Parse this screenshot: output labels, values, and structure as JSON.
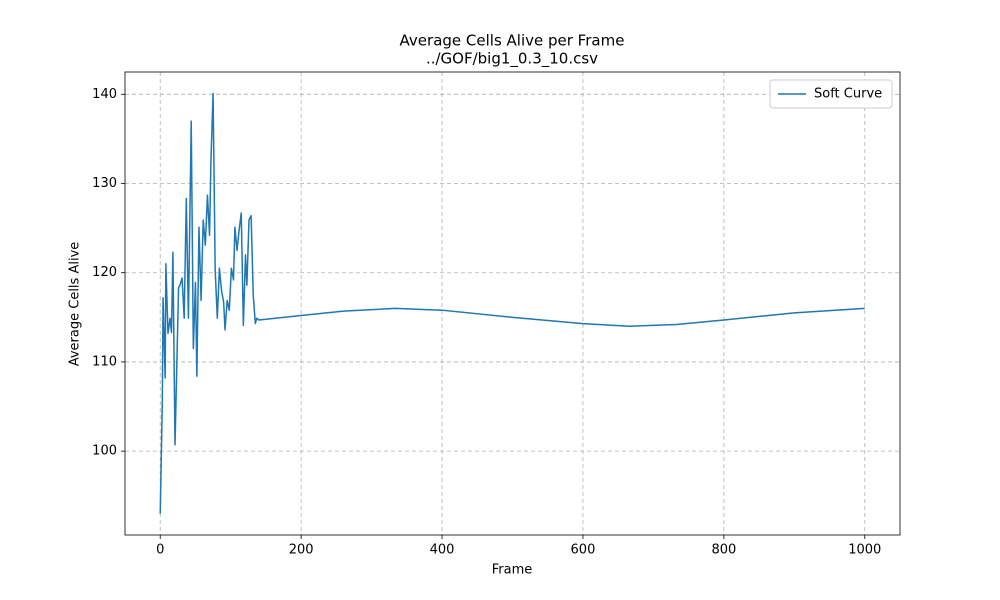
{
  "chart_data": {
    "type": "line",
    "title": "Average Cells Alive per Frame",
    "subtitle": "../GOF/big1_0.3_10.csv",
    "x_label": "Frame",
    "y_label": "Average Cells Alive",
    "xlim": [
      -50,
      1050
    ],
    "ylim": [
      90.6,
      142.5
    ],
    "xticks": [
      0,
      200,
      400,
      600,
      800,
      1000
    ],
    "yticks": [
      100,
      110,
      120,
      130,
      140
    ],
    "grid": true,
    "legend": "upper right",
    "x": [
      0,
      3,
      4,
      7,
      8,
      11,
      14,
      16,
      18,
      21,
      26,
      28,
      31,
      34,
      37,
      40,
      44,
      47,
      50,
      52,
      55,
      58,
      61,
      64,
      67,
      70,
      72,
      75,
      78,
      81,
      84,
      87,
      90,
      92,
      95,
      98,
      101,
      104,
      106,
      109,
      112,
      115,
      118,
      121,
      123,
      126,
      129,
      132,
      135,
      137,
      140,
      200,
      260,
      333,
      400,
      500,
      600,
      666,
      733,
      800,
      900,
      1000
    ],
    "series": [
      {
        "name": "Soft Curve",
        "color": "#1f77b4",
        "values": [
          93,
          105.7,
          117.2,
          108.2,
          121,
          113.2,
          114.9,
          113.3,
          122.3,
          100.7,
          118.3,
          118.6,
          119.4,
          114.9,
          128.3,
          114.9,
          137,
          111.5,
          118.9,
          108.4,
          125.1,
          116.9,
          125.9,
          123.1,
          128.7,
          124.2,
          132.6,
          140.1,
          120.3,
          114.9,
          120.5,
          118,
          116.7,
          113.6,
          116.9,
          115.8,
          120.5,
          119.2,
          125.1,
          122.5,
          124.8,
          126.7,
          114.1,
          122,
          118.6,
          125.9,
          126.4,
          117.5,
          114.3,
          114.9,
          114.7,
          115.2,
          115.7,
          116,
          115.8,
          115.0,
          114.3,
          114,
          114.2,
          114.7,
          115.5,
          116
        ]
      }
    ]
  }
}
